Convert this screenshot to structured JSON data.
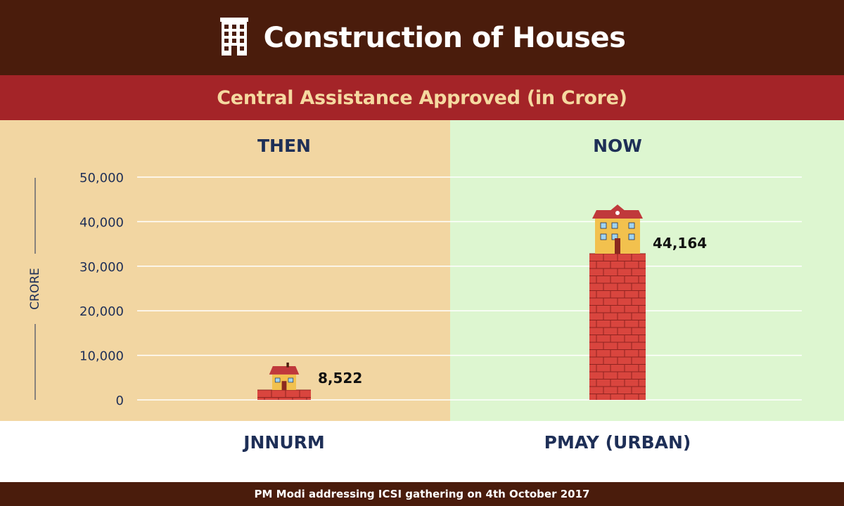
{
  "header": {
    "title": "Construction of Houses",
    "icon": "building-icon"
  },
  "subtitle": "Central Assistance Approved (in Crore)",
  "panels": {
    "then_label": "THEN",
    "now_label": "NOW"
  },
  "footer": "PM Modi addressing ICSI gathering on 4th October 2017",
  "colors": {
    "header": "#4a1c0c",
    "subbar": "#a42428",
    "then_bg": "#f2d6a2",
    "now_bg": "#ddf6d0",
    "brick": "#d9453e"
  },
  "chart_data": {
    "type": "bar",
    "title": "Central Assistance Approved (in Crore)",
    "ylabel": "CRORE",
    "xlabel": "",
    "categories": [
      "JNNURM",
      "PMAY (URBAN)"
    ],
    "values": [
      8522,
      44164
    ],
    "value_labels": [
      "8,522",
      "44,164"
    ],
    "ylim": [
      0,
      50000
    ],
    "yticks": [
      0,
      10000,
      20000,
      30000,
      40000,
      50000
    ],
    "ytick_labels": [
      "0",
      "10,000",
      "20,000",
      "30,000",
      "40,000",
      "50,000"
    ],
    "grid": true
  }
}
